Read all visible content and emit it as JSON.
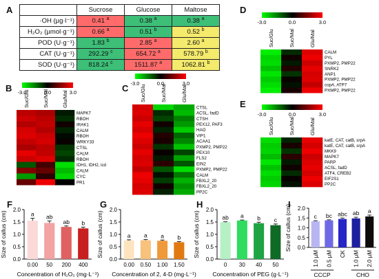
{
  "panelA": {
    "letter": "A",
    "columns": [
      "Sucrose",
      "Glucose",
      "Maltose"
    ],
    "rows": [
      {
        "label": "·OH (µg·l⁻¹)",
        "cells": [
          {
            "v": "0.41",
            "s": "a",
            "c": "#ff6b6b"
          },
          {
            "v": "0.38",
            "s": "a",
            "c": "#3dbf78"
          },
          {
            "v": "0.38",
            "s": "a",
            "c": "#3dbf78"
          }
        ]
      },
      {
        "label": "H₂O₂ (µmol·g⁻¹)",
        "cells": [
          {
            "v": "0.66",
            "s": "a",
            "c": "#ff6b6b"
          },
          {
            "v": "0.51",
            "s": "b",
            "c": "#3dbf78"
          },
          {
            "v": "0.52",
            "s": "b",
            "c": "#f4ea6c"
          }
        ]
      },
      {
        "label": "POD (U·g⁻¹)",
        "cells": [
          {
            "v": "1.83",
            "s": "b",
            "c": "#3dbf78"
          },
          {
            "v": "2.85",
            "s": "a",
            "c": "#ff6b6b"
          },
          {
            "v": "2.60",
            "s": "a",
            "c": "#f4ea6c"
          }
        ]
      },
      {
        "label": "CAT (U·g⁻¹)",
        "cells": [
          {
            "v": "292.29",
            "s": "c",
            "c": "#3dbf78"
          },
          {
            "v": "654.72",
            "s": "a",
            "c": "#ff6b6b"
          },
          {
            "v": "578.79",
            "s": "b",
            "c": "#f4ea6c"
          }
        ]
      },
      {
        "label": "SOD (U·g⁻¹)",
        "cells": [
          {
            "v": "818.24",
            "s": "c",
            "c": "#3dbf78"
          },
          {
            "v": "1511.87",
            "s": "a",
            "c": "#ff6b6b"
          },
          {
            "v": "1062.81",
            "s": "b",
            "c": "#f4ea6c"
          }
        ]
      }
    ]
  },
  "scale": {
    "min": "-3.0",
    "mid": "0.0",
    "max": "3.0"
  },
  "heatmaps": {
    "B": {
      "letter": "B",
      "columns": [
        "Suc/Glu",
        "Suc/Mal",
        "Glu/Mal"
      ],
      "genes": [
        "MAPK7",
        "RBOH",
        "IRAK1",
        "CALM",
        "RBOH",
        "WRKY33",
        "CTSL",
        "CALM",
        "RBOH",
        "IDH1, IDH2, icd",
        "CALM",
        "CYC",
        "PR1"
      ],
      "values": [
        [
          2.2,
          2.0,
          -0.3
        ],
        [
          2.4,
          2.2,
          -0.5
        ],
        [
          2.1,
          2.3,
          0.2
        ],
        [
          2.5,
          2.1,
          -0.4
        ],
        [
          2.6,
          2.4,
          -0.1
        ],
        [
          2.3,
          2.5,
          0.1
        ],
        [
          2.0,
          2.2,
          -0.6
        ],
        [
          2.7,
          2.3,
          -0.8
        ],
        [
          2.4,
          2.6,
          -0.5
        ],
        [
          -1.0,
          0.8,
          -2.6
        ],
        [
          1.5,
          1.2,
          -2.2
        ],
        [
          -1.8,
          0.5,
          -2.5
        ],
        [
          1.2,
          2.8,
          0.0
        ]
      ]
    },
    "C": {
      "letter": "C",
      "columns": [
        "Suc/Glu",
        "Suc/Mal",
        "Glu/Mal"
      ],
      "genes": [
        "CTSL",
        "ACSL, fadD",
        "CTSH",
        "PEX12, PAF3",
        "HAO",
        "VIP1",
        "ACAA1",
        "PXMP2, PMP22",
        "PEX10",
        "FLS2",
        "EIN2",
        "PXMP2, PMP22",
        "CALM",
        "FBXL2_20",
        "FBXL2_20",
        "PP2C"
      ],
      "values": [
        [
          2.5,
          -2.5,
          -2.0
        ],
        [
          2.6,
          -0.5,
          -2.2
        ],
        [
          2.4,
          -0.8,
          -1.5
        ],
        [
          2.7,
          0.2,
          -1.8
        ],
        [
          2.5,
          -0.4,
          -2.4
        ],
        [
          2.8,
          0.4,
          -1.2
        ],
        [
          2.6,
          0.3,
          -1.6
        ],
        [
          2.4,
          -0.6,
          -2.3
        ],
        [
          2.7,
          0.1,
          -0.8
        ],
        [
          2.5,
          -0.3,
          -1.9
        ],
        [
          2.6,
          0.5,
          -1.0
        ],
        [
          2.3,
          -1.0,
          -2.6
        ],
        [
          2.8,
          -0.2,
          -1.4
        ],
        [
          2.7,
          -0.7,
          -2.1
        ],
        [
          2.5,
          0.2,
          -1.7
        ],
        [
          2.6,
          -0.4,
          -2.0
        ]
      ]
    },
    "D": {
      "letter": "D",
      "columns": [
        "Suc/Glu",
        "Suc/Mal",
        "Glu/Mal"
      ],
      "genes": [
        "CALM",
        "PYL",
        "PXMP2, PMP22",
        "SNRK2",
        "ANP1",
        "PXMP2, PMP22",
        "copA, ATP7",
        "PXMP2, PMP22"
      ],
      "values": [
        [
          -2.8,
          -0.5,
          2.6
        ],
        [
          -2.5,
          0.2,
          2.8
        ],
        [
          -2.6,
          -0.3,
          2.4
        ],
        [
          -2.3,
          0.4,
          2.7
        ],
        [
          -2.7,
          -0.6,
          2.5
        ],
        [
          -2.4,
          0.1,
          2.6
        ],
        [
          -2.6,
          -0.2,
          2.3
        ],
        [
          -2.8,
          0.3,
          2.8
        ]
      ]
    },
    "E": {
      "letter": "E",
      "columns": [
        "Suc/Glu",
        "Suc/Mal",
        "Glu/Mal"
      ],
      "genes": [
        "katE, CAT, catB, srpA",
        "katE, CAT, catB, srpA",
        "MKK9",
        "MAPK7",
        "PARP",
        "ACSL, fadD",
        "ATF4, CREB2",
        "EIF2S1",
        "PP2C"
      ],
      "values": [
        [
          -2.6,
          -0.4,
          2.7
        ],
        [
          -2.4,
          0.3,
          2.5
        ],
        [
          -2.5,
          -0.6,
          2.8
        ],
        [
          -2.2,
          0.5,
          2.4
        ],
        [
          -2.7,
          -0.3,
          2.6
        ],
        [
          -2.3,
          0.2,
          2.7
        ],
        [
          -2.6,
          -0.5,
          2.5
        ],
        [
          -2.4,
          0.1,
          2.8
        ],
        [
          -2.5,
          -0.2,
          2.6
        ]
      ]
    }
  },
  "chart_data": [
    {
      "id": "F",
      "letter": "F",
      "type": "bar",
      "categories": [
        "0.00",
        "50",
        "200",
        "400"
      ],
      "values": [
        1.55,
        1.46,
        1.3,
        1.24
      ],
      "errors": [
        0.1,
        0.08,
        0.04,
        0.05
      ],
      "labels": [
        "a",
        "ab",
        "ab",
        "b"
      ],
      "colors": [
        "#fbd9d9",
        "#f2a3a3",
        "#e06161",
        "#c81f1f"
      ],
      "ylabel": "Size of callus (cm)",
      "xlabel": "Concentration of H₂O₂ (mg·L⁻¹)",
      "ylim": [
        0,
        2.0
      ],
      "yticks": [
        "0.0",
        "0.5",
        "1.0",
        "1.5",
        "2.0"
      ]
    },
    {
      "id": "G",
      "letter": "G",
      "type": "bar",
      "categories": [
        "0.00",
        "0.50",
        "1.00",
        "1.50"
      ],
      "values": [
        0.75,
        0.76,
        0.74,
        0.68
      ],
      "errors": [
        0.03,
        0.03,
        0.03,
        0.03
      ],
      "labels": [
        "a",
        "a",
        "a",
        "b"
      ],
      "colors": [
        "#fde4bf",
        "#f7c27c",
        "#ef9a3a",
        "#e07a10"
      ],
      "ylabel": "Size of callus (cm)",
      "xlabel": "Concentration of 2, 4-D (mg·L⁻¹)",
      "ylim": [
        0,
        2.0
      ],
      "yticks": [
        "0.0",
        "0.5",
        "1.0",
        "1.5",
        "2.0"
      ]
    },
    {
      "id": "H",
      "letter": "H",
      "type": "bar",
      "categories": [
        "0",
        "30",
        "40",
        "50"
      ],
      "values": [
        1.49,
        1.56,
        1.45,
        1.37
      ],
      "errors": [
        0.02,
        0.02,
        0.04,
        0.05
      ],
      "labels": [
        "ab",
        "a",
        "b",
        "c"
      ],
      "colors": [
        "#b6f0c5",
        "#2fdc5f",
        "#1fa443",
        "#0f6a25"
      ],
      "ylabel": "Size of callus (cm)",
      "xlabel": "Concentration of PEG (g·L⁻¹)",
      "ylim": [
        0,
        2.0
      ],
      "yticks": [
        "0.0",
        "0.5",
        "1.0",
        "1.5",
        "2.0"
      ]
    },
    {
      "id": "I",
      "letter": "I",
      "type": "bar",
      "categories": [
        "1.0 µM",
        "0.5 µM",
        "CK",
        "1.0 µM",
        "2.0 µM"
      ],
      "values": [
        1.33,
        1.38,
        1.45,
        1.48,
        1.58
      ],
      "errors": [
        0.03,
        0.03,
        0.05,
        0.06,
        0.07
      ],
      "labels": [
        "c",
        "bc",
        "abc",
        "ab",
        "a"
      ],
      "colors": [
        "#b8b6f2",
        "#6e6ae6",
        "#2727c8",
        "#1e1ea0",
        "#0c0c0c"
      ],
      "ylabel": "Size of callus (cm)",
      "ylim": [
        0,
        2.0
      ],
      "yticks": [
        "0.0",
        "0.5",
        "1.0",
        "1.5",
        "2.0"
      ],
      "groups": [
        {
          "label": "CCCP",
          "from": 0,
          "to": 1
        },
        {
          "label": "CHO",
          "from": 3,
          "to": 4
        }
      ]
    }
  ]
}
